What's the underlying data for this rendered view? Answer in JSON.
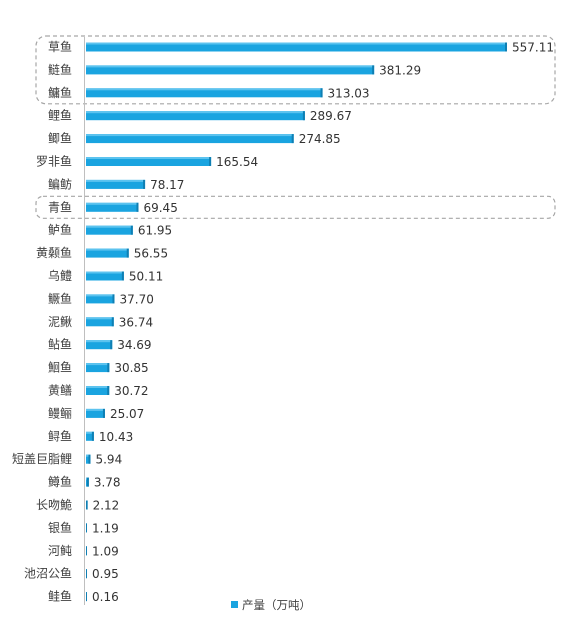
{
  "chart_data": {
    "type": "bar",
    "orientation": "horizontal",
    "categories": [
      "草鱼",
      "鲢鱼",
      "鳙鱼",
      "鲤鱼",
      "鲫鱼",
      "罗非鱼",
      "鳊鲂",
      "青鱼",
      "鲈鱼",
      "黄颡鱼",
      "乌鳢",
      "鳜鱼",
      "泥鳅",
      "鲇鱼",
      "鮰鱼",
      "黄鳝",
      "鳗鲡",
      "鲟鱼",
      "短盖巨脂鲤",
      "鳟鱼",
      "长吻鮠",
      "银鱼",
      "河鲀",
      "池沼公鱼",
      "鲑鱼"
    ],
    "series": [
      {
        "name": "产量（万吨）",
        "values": [
          557.11,
          381.29,
          313.03,
          289.67,
          274.85,
          165.54,
          78.17,
          69.45,
          61.95,
          56.55,
          50.11,
          37.7,
          36.74,
          34.69,
          30.85,
          30.72,
          25.07,
          10.43,
          5.94,
          3.78,
          2.12,
          1.19,
          1.09,
          0.95,
          0.16
        ],
        "value_labels": [
          "557.11",
          "381.29",
          "313.03",
          "289.67",
          "274.85",
          "165.54",
          "78.17",
          "69.45",
          "61.95",
          "56.55",
          "50.11",
          "37.70",
          "36.74",
          "34.69",
          "30.85",
          "30.72",
          "25.07",
          "10.43",
          "5.94",
          "3.78",
          "2.12",
          "1.19",
          "1.09",
          "0.95",
          "0.16"
        ],
        "color": "#1AA4E0"
      }
    ],
    "xlim": [
      0,
      557.11
    ],
    "grid": false,
    "legend": "bottom",
    "highlight_groups": [
      [
        0,
        2
      ],
      [
        7,
        7
      ]
    ],
    "highlight_color": "#a6a6a6"
  }
}
